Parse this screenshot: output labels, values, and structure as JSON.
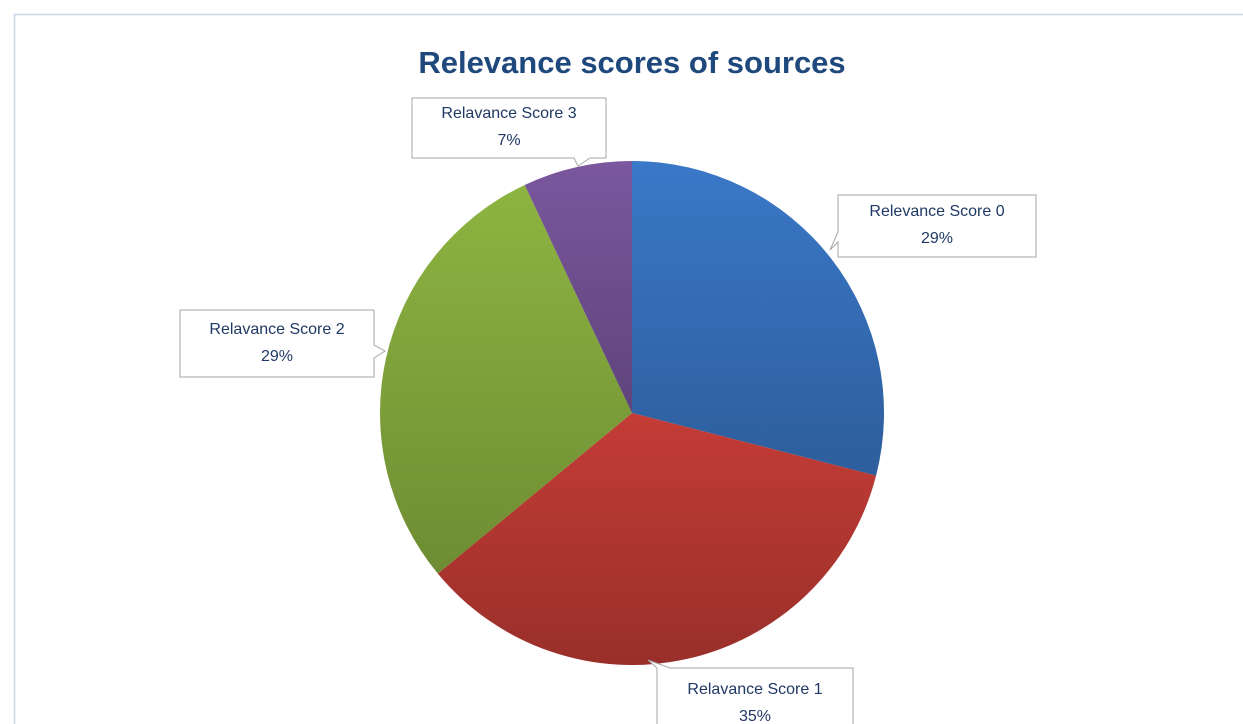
{
  "chart_data": {
    "type": "pie",
    "title": "Relevance scores of sources",
    "categories": [
      "Relevance Score 0",
      "Relavance Score 1",
      "Relavance Score 2",
      "Relavance Score 3"
    ],
    "values": [
      29,
      35,
      29,
      7
    ],
    "value_labels": [
      "29%",
      "35%",
      "29%",
      "7%"
    ],
    "colors": [
      "#3a78c8",
      "#c43c36",
      "#8db441",
      "#7a579e"
    ]
  }
}
